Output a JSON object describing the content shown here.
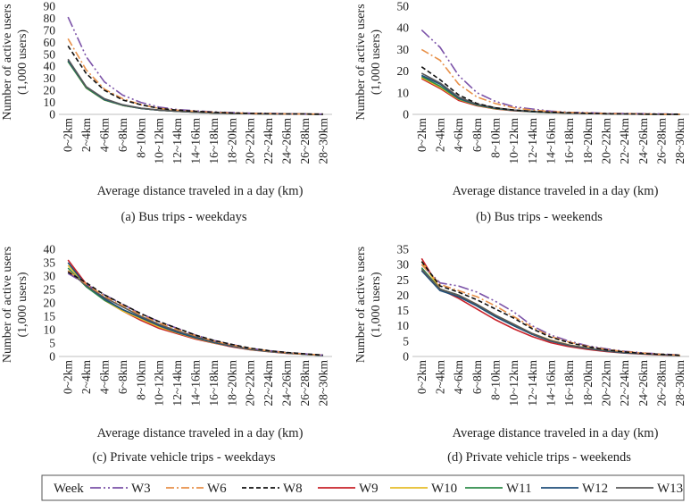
{
  "legend": {
    "title": "Week",
    "entries": [
      {
        "name": "W3",
        "color": "#7b52a8",
        "dash": "12 3 2 3 2 3"
      },
      {
        "name": "W6",
        "color": "#e8914a",
        "dash": "9 3 2 3"
      },
      {
        "name": "W8",
        "color": "#111111",
        "dash": "5 3"
      },
      {
        "name": "W9",
        "color": "#c8222a",
        "dash": ""
      },
      {
        "name": "W10",
        "color": "#e6bd2a",
        "dash": ""
      },
      {
        "name": "W11",
        "color": "#2e8b4a",
        "dash": ""
      },
      {
        "name": "W12",
        "color": "#1f4e79",
        "dash": ""
      },
      {
        "name": "W13",
        "color": "#595959",
        "dash": ""
      }
    ]
  },
  "chart_data": [
    {
      "type": "line",
      "caption": "(a) Bus trips - weekdays",
      "xlabel": "Average distance traveled in a day (km)",
      "ylabel": [
        "Number of active users",
        "(1,000 users)"
      ],
      "categories": [
        "0~2km",
        "2~4km",
        "4~6km",
        "6~8km",
        "8~10km",
        "10~12km",
        "12~14km",
        "14~16km",
        "16~18km",
        "18~20km",
        "20~22km",
        "22~24km",
        "24~26km",
        "26~28km",
        "28~30km"
      ],
      "ylim": [
        0,
        90
      ],
      "yticks": [
        0,
        10,
        20,
        30,
        40,
        50,
        60,
        70,
        80,
        90
      ],
      "series": [
        {
          "name": "W3",
          "values": [
            81,
            48,
            27,
            16,
            10,
            6,
            4,
            3,
            2,
            1.5,
            1,
            0.8,
            0.5,
            0.3,
            0.2
          ]
        },
        {
          "name": "W6",
          "values": [
            63,
            37,
            21,
            13,
            8,
            5,
            3.5,
            2.5,
            1.8,
            1.2,
            0.8,
            0.6,
            0.4,
            0.3,
            0.2
          ]
        },
        {
          "name": "W8",
          "values": [
            57,
            34,
            20,
            12,
            8,
            5,
            3.5,
            2.5,
            1.8,
            1.2,
            0.8,
            0.6,
            0.4,
            0.3,
            0.2
          ]
        },
        {
          "name": "W9",
          "values": [
            45,
            22,
            12,
            7.5,
            5,
            3.5,
            2.5,
            1.8,
            1.2,
            0.8,
            0.6,
            0.4,
            0.3,
            0.2,
            0.1
          ]
        },
        {
          "name": "W10",
          "values": [
            44,
            22,
            12,
            7.5,
            5,
            3.5,
            2.5,
            1.8,
            1.2,
            0.8,
            0.6,
            0.4,
            0.3,
            0.2,
            0.1
          ]
        },
        {
          "name": "W11",
          "values": [
            44,
            22,
            12,
            7.5,
            5,
            3.5,
            2.5,
            1.8,
            1.2,
            0.8,
            0.6,
            0.4,
            0.3,
            0.2,
            0.1
          ]
        },
        {
          "name": "W12",
          "values": [
            45,
            23,
            12.5,
            7.8,
            5,
            3.5,
            2.5,
            1.8,
            1.2,
            0.8,
            0.6,
            0.4,
            0.3,
            0.2,
            0.1
          ]
        },
        {
          "name": "W13",
          "values": [
            46,
            23,
            13,
            8,
            5.2,
            3.6,
            2.6,
            1.9,
            1.3,
            0.9,
            0.6,
            0.4,
            0.3,
            0.2,
            0.1
          ]
        }
      ]
    },
    {
      "type": "line",
      "caption": "(b) Bus trips - weekends",
      "xlabel": "Average distance traveled in a day (km)",
      "ylabel": [
        "Number of active users",
        "(1,000 users)"
      ],
      "categories": [
        "0~2km",
        "2~4km",
        "4~6km",
        "6~8km",
        "8~10km",
        "10~12km",
        "12~14km",
        "14~16km",
        "16~18km",
        "18~20km",
        "20~22km",
        "22~24km",
        "24~26km",
        "26~28km",
        "28~30km"
      ],
      "ylim": [
        0,
        50
      ],
      "yticks": [
        0,
        10,
        20,
        30,
        40,
        50
      ],
      "series": [
        {
          "name": "W3",
          "values": [
            39,
            31,
            18,
            10,
            6,
            3.5,
            2.5,
            1.5,
            1,
            0.8,
            0.5,
            0.4,
            0.3,
            0.2,
            0.1
          ]
        },
        {
          "name": "W6",
          "values": [
            30,
            25,
            14,
            8,
            5,
            3,
            2,
            1.3,
            0.9,
            0.6,
            0.4,
            0.3,
            0.2,
            0.1,
            0.1
          ]
        },
        {
          "name": "W8",
          "values": [
            22,
            16,
            9,
            5,
            3,
            2,
            1.4,
            1,
            0.7,
            0.5,
            0.3,
            0.2,
            0.15,
            0.1,
            0.1
          ]
        },
        {
          "name": "W9",
          "values": [
            16.5,
            12,
            6.5,
            4,
            2.5,
            1.7,
            1.2,
            0.8,
            0.6,
            0.4,
            0.3,
            0.2,
            0.1,
            0.1,
            0.05
          ]
        },
        {
          "name": "W10",
          "values": [
            17,
            12.5,
            7,
            4.2,
            2.6,
            1.8,
            1.2,
            0.8,
            0.6,
            0.4,
            0.3,
            0.2,
            0.1,
            0.1,
            0.05
          ]
        },
        {
          "name": "W11",
          "values": [
            17.5,
            13,
            7.2,
            4.3,
            2.7,
            1.8,
            1.2,
            0.8,
            0.6,
            0.4,
            0.3,
            0.2,
            0.1,
            0.1,
            0.05
          ]
        },
        {
          "name": "W12",
          "values": [
            18,
            14,
            7.5,
            4.5,
            2.8,
            1.9,
            1.3,
            0.9,
            0.6,
            0.4,
            0.3,
            0.2,
            0.1,
            0.1,
            0.05
          ]
        },
        {
          "name": "W13",
          "values": [
            19,
            14.5,
            8,
            4.7,
            3,
            2,
            1.4,
            0.9,
            0.6,
            0.4,
            0.3,
            0.2,
            0.1,
            0.1,
            0.05
          ]
        }
      ]
    },
    {
      "type": "line",
      "caption": "(c) Private vehicle trips - weekdays",
      "xlabel": "Average distance traveled in a day (km)",
      "ylabel": [
        "Number of active users",
        "(1,000 users)"
      ],
      "categories": [
        "0~2km",
        "2~4km",
        "4~6km",
        "6~8km",
        "8~10km",
        "10~12km",
        "12~14km",
        "14~16km",
        "16~18km",
        "18~20km",
        "20~22km",
        "22~24km",
        "24~26km",
        "26~28km",
        "28~30km"
      ],
      "ylim": [
        0,
        40
      ],
      "yticks": [
        0,
        5,
        10,
        15,
        20,
        25,
        30,
        35,
        40
      ],
      "series": [
        {
          "name": "W3",
          "values": [
            31,
            27,
            23,
            19.5,
            16,
            13,
            10.5,
            8,
            6,
            4.5,
            3,
            2.2,
            1.5,
            1,
            0.5
          ]
        },
        {
          "name": "W6",
          "values": [
            32,
            27,
            22.5,
            19,
            15.5,
            12.5,
            10,
            7.8,
            5.8,
            4.3,
            3,
            2.1,
            1.4,
            0.9,
            0.5
          ]
        },
        {
          "name": "W8",
          "values": [
            31.5,
            27.5,
            23,
            19.5,
            16,
            13,
            10.5,
            8,
            6,
            4.5,
            3.1,
            2.2,
            1.5,
            1,
            0.5
          ]
        },
        {
          "name": "W9",
          "values": [
            36,
            27,
            21,
            17,
            13.5,
            10.5,
            8.5,
            6.5,
            5,
            3.6,
            2.5,
            1.8,
            1.2,
            0.8,
            0.4
          ]
        },
        {
          "name": "W10",
          "values": [
            34,
            26.5,
            21,
            17,
            14,
            11,
            8.8,
            6.8,
            5.1,
            3.8,
            2.6,
            1.9,
            1.3,
            0.8,
            0.4
          ]
        },
        {
          "name": "W11",
          "values": [
            33,
            26,
            21,
            17.5,
            14.5,
            11.5,
            9,
            7,
            5.3,
            3.9,
            2.7,
            1.9,
            1.3,
            0.8,
            0.4
          ]
        },
        {
          "name": "W12",
          "values": [
            35,
            26.5,
            21.5,
            17.5,
            14.5,
            11.5,
            9,
            7,
            5.2,
            3.8,
            2.7,
            1.9,
            1.3,
            0.8,
            0.4
          ]
        },
        {
          "name": "W13",
          "values": [
            32,
            26.5,
            22,
            18.5,
            15,
            12,
            9.5,
            7.5,
            5.5,
            4,
            2.8,
            2,
            1.4,
            0.9,
            0.5
          ]
        }
      ]
    },
    {
      "type": "line",
      "caption": "(d) Private vehicle trips - weekends",
      "xlabel": "Average distance traveled in a day (km)",
      "ylabel": [
        "Number of active users",
        "(1,000 users)"
      ],
      "categories": [
        "0~2km",
        "2~4km",
        "4~6km",
        "6~8km",
        "8~10km",
        "10~12km",
        "12~14km",
        "14~16km",
        "16~18km",
        "18~20km",
        "20~22km",
        "22~24km",
        "24~26km",
        "26~28km",
        "28~30km"
      ],
      "ylim": [
        0,
        35
      ],
      "yticks": [
        0,
        5,
        10,
        15,
        20,
        25,
        30,
        35
      ],
      "series": [
        {
          "name": "W3",
          "values": [
            30,
            24,
            23,
            21,
            18,
            14.5,
            10,
            7,
            5,
            3.5,
            2.5,
            1.7,
            1.2,
            0.8,
            0.5
          ]
        },
        {
          "name": "W6",
          "values": [
            30,
            23.5,
            21.5,
            19.5,
            16.5,
            13,
            9.5,
            6.5,
            4.7,
            3.3,
            2.3,
            1.6,
            1.1,
            0.7,
            0.4
          ]
        },
        {
          "name": "W8",
          "values": [
            31,
            23,
            21,
            18.5,
            15.5,
            12.5,
            9,
            6.3,
            4.5,
            3.2,
            2.2,
            1.5,
            1,
            0.7,
            0.4
          ]
        },
        {
          "name": "W9",
          "values": [
            32,
            22,
            19,
            15.5,
            12,
            9,
            6.5,
            4.5,
            3.2,
            2.3,
            1.6,
            1.1,
            0.8,
            0.5,
            0.3
          ]
        },
        {
          "name": "W10",
          "values": [
            31,
            22,
            20,
            17,
            13.5,
            10.5,
            7.5,
            5.3,
            3.8,
            2.7,
            1.9,
            1.3,
            0.9,
            0.6,
            0.3
          ]
        },
        {
          "name": "W11",
          "values": [
            29,
            22,
            20,
            16.5,
            13,
            10,
            7.2,
            5,
            3.6,
            2.6,
            1.8,
            1.2,
            0.9,
            0.6,
            0.3
          ]
        },
        {
          "name": "W12",
          "values": [
            28,
            21.5,
            19.5,
            16.5,
            13,
            10,
            7.2,
            5,
            3.6,
            2.6,
            1.8,
            1.2,
            0.9,
            0.6,
            0.3
          ]
        },
        {
          "name": "W13",
          "values": [
            28.5,
            22,
            20,
            17,
            13.5,
            10.5,
            7.5,
            5.2,
            3.7,
            2.7,
            1.9,
            1.3,
            0.9,
            0.6,
            0.3
          ]
        }
      ]
    }
  ]
}
